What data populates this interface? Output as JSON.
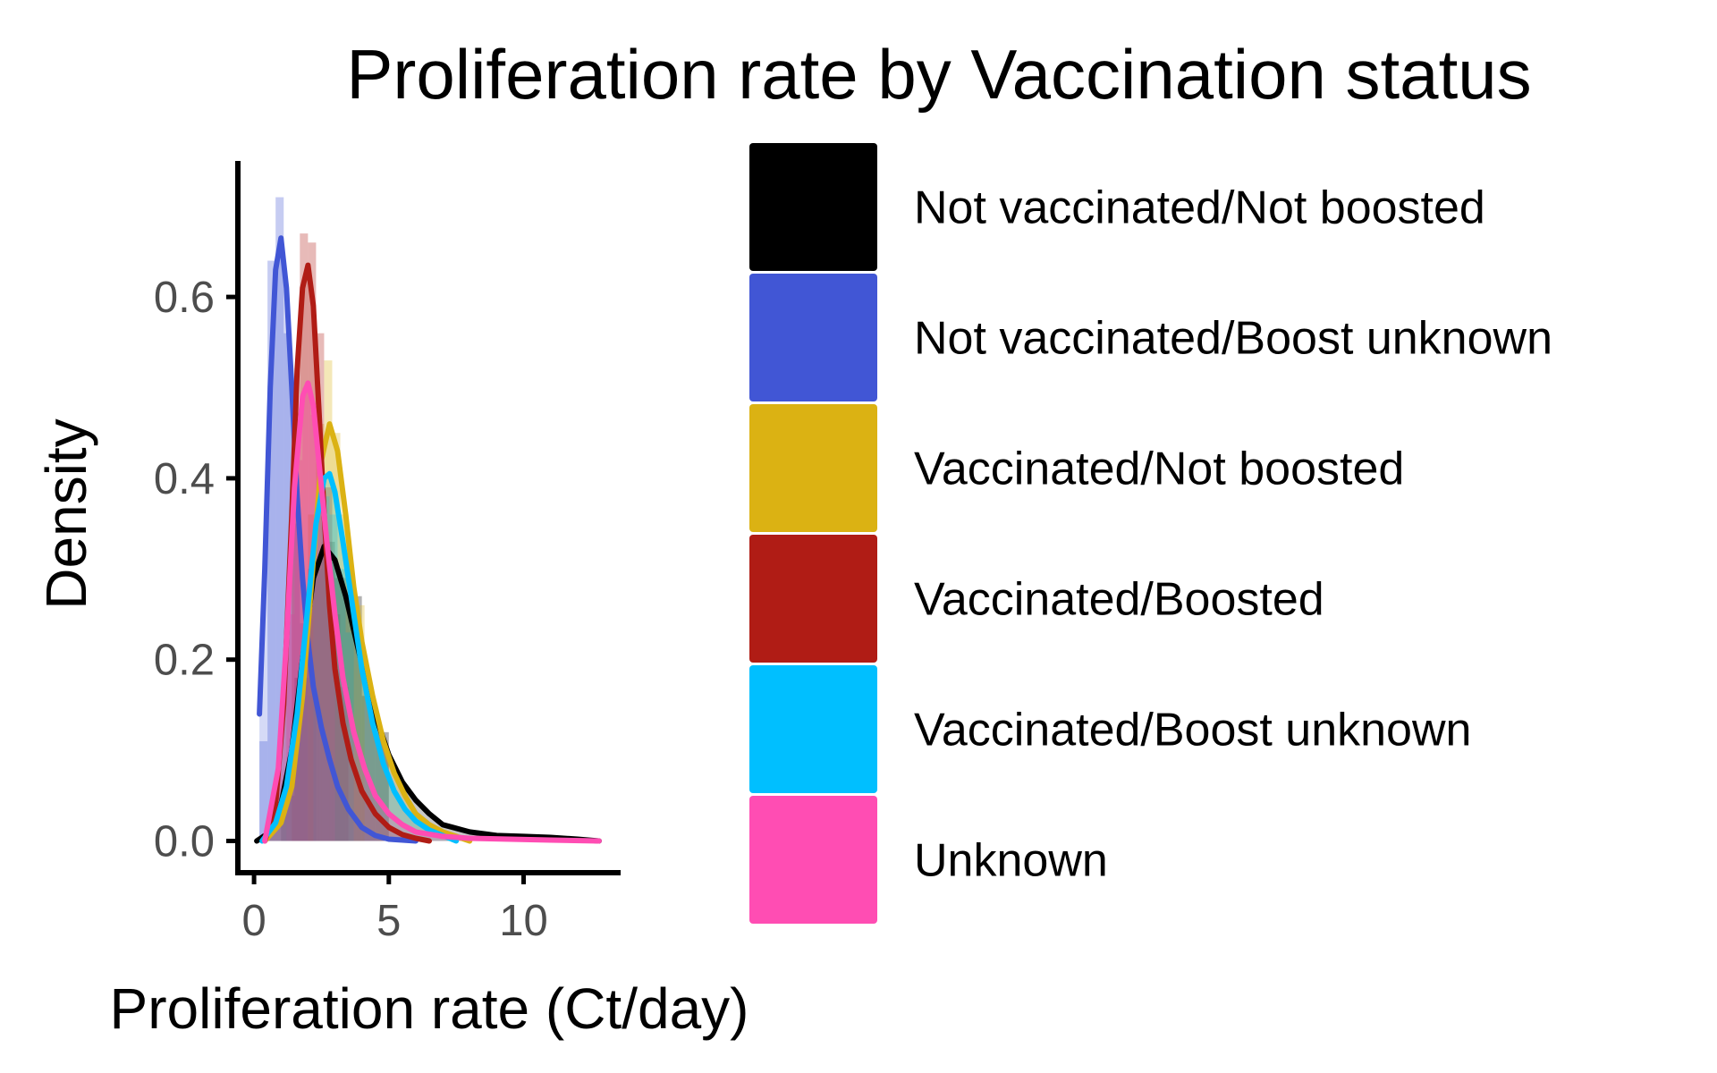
{
  "chart_data": {
    "type": "area",
    "title": "Proliferation rate by Vaccination status",
    "xlabel": "Proliferation rate (Ct/day)",
    "ylabel": "Density",
    "xlim": [
      -0.6,
      13.6
    ],
    "ylim": [
      -0.035,
      0.75
    ],
    "x_ticks": [
      0,
      5,
      10
    ],
    "x_tick_labels": [
      "0",
      "5",
      "10"
    ],
    "y_ticks": [
      0.0,
      0.2,
      0.4,
      0.6
    ],
    "y_tick_labels": [
      "0.0",
      "0.2",
      "0.4",
      "0.6"
    ],
    "grid": false,
    "legend_position": "right",
    "legend_title": "",
    "series": [
      {
        "name": "Not vaccinated/Not boosted",
        "color": "#000000",
        "x": [
          0.1,
          0.6,
          1.0,
          1.4,
          1.8,
          2.2,
          2.6,
          3.0,
          3.4,
          3.8,
          4.2,
          4.6,
          5.0,
          5.5,
          6.0,
          6.5,
          7.0,
          8.0,
          9.0,
          10.0,
          11.0,
          12.0,
          12.8
        ],
        "y": [
          0.0,
          0.01,
          0.04,
          0.1,
          0.2,
          0.29,
          0.325,
          0.31,
          0.27,
          0.22,
          0.17,
          0.13,
          0.095,
          0.065,
          0.045,
          0.03,
          0.018,
          0.01,
          0.006,
          0.005,
          0.004,
          0.002,
          0.0
        ],
        "histogram": {
          "bin_starts": [
            1.0,
            1.5,
            2.0,
            2.5,
            3.0,
            3.5,
            4.0,
            4.5
          ],
          "bin_width": 0.5,
          "values": [
            0.05,
            0.18,
            0.3,
            0.33,
            0.29,
            0.27,
            0.16,
            0.12
          ]
        }
      },
      {
        "name": "Not vaccinated/Boost unknown",
        "color": "#4156d5",
        "x": [
          0.2,
          0.4,
          0.6,
          0.8,
          1.0,
          1.2,
          1.4,
          1.6,
          1.8,
          2.0,
          2.2,
          2.5,
          2.8,
          3.1,
          3.5,
          4.0,
          4.5,
          5.0,
          5.5,
          6.0
        ],
        "y": [
          0.14,
          0.3,
          0.5,
          0.63,
          0.665,
          0.61,
          0.5,
          0.38,
          0.29,
          0.22,
          0.17,
          0.125,
          0.09,
          0.06,
          0.035,
          0.015,
          0.006,
          0.002,
          0.001,
          0.0
        ],
        "histogram": {
          "bin_starts": [
            0.2,
            0.5,
            0.8,
            1.1,
            1.4,
            1.7,
            2.0
          ],
          "bin_width": 0.3,
          "values": [
            0.11,
            0.64,
            0.71,
            0.56,
            0.35,
            0.24,
            0.16
          ]
        }
      },
      {
        "name": "Vaccinated/Not boosted",
        "color": "#dbb213",
        "x": [
          0.4,
          1.0,
          1.4,
          1.8,
          2.2,
          2.5,
          2.8,
          3.1,
          3.4,
          3.7,
          4.0,
          4.4,
          4.8,
          5.2,
          5.6,
          6.0,
          6.5,
          7.0,
          7.5,
          8.0
        ],
        "y": [
          0.0,
          0.02,
          0.06,
          0.16,
          0.31,
          0.42,
          0.46,
          0.43,
          0.36,
          0.28,
          0.22,
          0.16,
          0.11,
          0.075,
          0.05,
          0.03,
          0.018,
          0.01,
          0.005,
          0.0
        ],
        "histogram": {
          "bin_starts": [
            2.0,
            2.3,
            2.6,
            2.9,
            3.2,
            3.5,
            3.8
          ],
          "bin_width": 0.3,
          "values": [
            0.36,
            0.46,
            0.53,
            0.45,
            0.36,
            0.27,
            0.26
          ]
        }
      },
      {
        "name": "Vaccinated/Boosted",
        "color": "#b01c15",
        "x": [
          0.4,
          0.8,
          1.1,
          1.4,
          1.6,
          1.8,
          2.0,
          2.2,
          2.4,
          2.6,
          2.8,
          3.0,
          3.3,
          3.6,
          4.0,
          4.5,
          5.0,
          5.5,
          6.0,
          6.5
        ],
        "y": [
          0.0,
          0.04,
          0.15,
          0.36,
          0.52,
          0.61,
          0.635,
          0.59,
          0.48,
          0.36,
          0.26,
          0.19,
          0.13,
          0.09,
          0.055,
          0.03,
          0.015,
          0.007,
          0.003,
          0.0
        ],
        "histogram": {
          "bin_starts": [
            1.4,
            1.7,
            2.0,
            2.3,
            2.6,
            2.9,
            3.2
          ],
          "bin_width": 0.3,
          "values": [
            0.43,
            0.67,
            0.66,
            0.56,
            0.39,
            0.25,
            0.17
          ]
        }
      },
      {
        "name": "Vaccinated/Boost unknown",
        "color": "#00bfff",
        "x": [
          0.3,
          0.8,
          1.2,
          1.6,
          2.0,
          2.3,
          2.6,
          2.8,
          3.0,
          3.3,
          3.6,
          4.0,
          4.4,
          4.8,
          5.2,
          5.6,
          6.0,
          6.5,
          7.0,
          7.5
        ],
        "y": [
          0.0,
          0.02,
          0.06,
          0.14,
          0.26,
          0.35,
          0.4,
          0.405,
          0.385,
          0.33,
          0.27,
          0.19,
          0.13,
          0.085,
          0.055,
          0.035,
          0.022,
          0.012,
          0.006,
          0.0
        ],
        "histogram": {
          "bin_starts": [
            2.2,
            2.5,
            2.8,
            3.1,
            3.4
          ],
          "bin_width": 0.3,
          "values": [
            0.3,
            0.38,
            0.36,
            0.3,
            0.23
          ]
        }
      },
      {
        "name": "Unknown",
        "color": "#ff4db3",
        "x": [
          0.4,
          0.9,
          1.2,
          1.5,
          1.8,
          2.0,
          2.2,
          2.4,
          2.7,
          3.0,
          3.3,
          3.7,
          4.1,
          4.5,
          5.0,
          5.5,
          6.0,
          7.0,
          8.0,
          9.5,
          11.0,
          12.8
        ],
        "y": [
          0.0,
          0.08,
          0.22,
          0.39,
          0.49,
          0.505,
          0.48,
          0.42,
          0.33,
          0.25,
          0.18,
          0.12,
          0.08,
          0.05,
          0.03,
          0.018,
          0.01,
          0.005,
          0.003,
          0.002,
          0.001,
          0.0
        ],
        "histogram": {
          "bin_starts": [
            1.2,
            1.5,
            1.8,
            2.1,
            2.4,
            2.7
          ],
          "bin_width": 0.3,
          "values": [
            0.25,
            0.42,
            0.5,
            0.47,
            0.38,
            0.29
          ]
        }
      }
    ]
  }
}
